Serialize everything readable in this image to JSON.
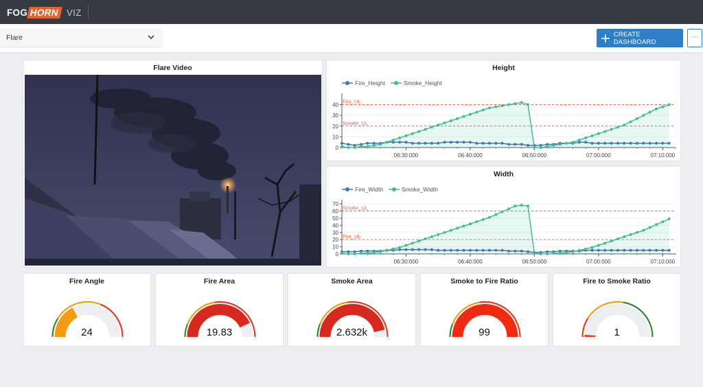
{
  "app": {
    "brand_fog": "FOG",
    "brand_horn": "HORN",
    "brand_viz": "VIZ"
  },
  "toolbar": {
    "dashboard_select": "Flare",
    "create_label": "CREATE DASHBOARD",
    "more_label": "···"
  },
  "video": {
    "title": "Flare Video"
  },
  "colors": {
    "fire": "#3d78b8",
    "smoke": "#3dbf8f",
    "limit": "#e8603c",
    "gauge_red": "#e53b1f",
    "gauge_orange": "#f39c12",
    "gauge_green": "#2e8b2e",
    "gauge_track": "#eceef1"
  },
  "chart_data": [
    {
      "type": "line",
      "title": "Height",
      "x_ticks": [
        "06:30:000",
        "06:40:000",
        "06:50:000",
        "07:00:000",
        "07:10:000"
      ],
      "x_range": [
        "06:20:00",
        "07:12:00"
      ],
      "ylim": [
        0,
        48
      ],
      "y_ticks": [
        0,
        10,
        20,
        30,
        40
      ],
      "limits": [
        {
          "label": "Fire_UL",
          "value": 40
        },
        {
          "label": "Smoke_UL",
          "value": 20
        }
      ],
      "series": [
        {
          "name": "Fire_Height",
          "x": [
            "06:20:00",
            "06:21:00",
            "06:22:00",
            "06:23:00",
            "06:24:00",
            "06:25:00",
            "06:26:00",
            "06:27:00",
            "06:28:00",
            "06:29:00",
            "06:30:00",
            "06:31:00",
            "06:32:00",
            "06:33:00",
            "06:34:00",
            "06:35:00",
            "06:36:00",
            "06:37:00",
            "06:38:00",
            "06:39:00",
            "06:40:00",
            "06:41:00",
            "06:42:00",
            "06:43:00",
            "06:44:00",
            "06:45:00",
            "06:46:00",
            "06:47:00",
            "06:48:00",
            "06:49:00",
            "06:50:00",
            "06:51:00",
            "06:52:00",
            "06:53:00",
            "06:54:00",
            "06:55:00",
            "06:56:00",
            "06:57:00",
            "06:58:00",
            "06:59:00",
            "07:00:00",
            "07:01:00",
            "07:02:00",
            "07:03:00",
            "07:04:00",
            "07:05:00",
            "07:06:00",
            "07:07:00",
            "07:08:00",
            "07:09:00",
            "07:10:00",
            "07:11:00"
          ],
          "values": [
            4,
            3,
            2,
            3,
            4,
            4,
            4,
            5,
            5,
            5,
            5,
            4,
            4,
            4,
            4,
            4,
            5,
            5,
            5,
            5,
            5,
            4,
            4,
            4,
            4,
            4,
            3,
            3,
            3,
            2,
            2,
            2,
            3,
            3,
            4,
            4,
            4,
            5,
            5,
            4,
            4,
            4,
            4,
            4,
            4,
            4,
            4,
            4,
            4,
            4,
            4,
            4
          ]
        },
        {
          "name": "Smoke_Height",
          "x": [
            "06:20:00",
            "06:21:00",
            "06:22:00",
            "06:23:00",
            "06:24:00",
            "06:25:00",
            "06:26:00",
            "06:27:00",
            "06:28:00",
            "06:29:00",
            "06:30:00",
            "06:31:00",
            "06:32:00",
            "06:33:00",
            "06:34:00",
            "06:35:00",
            "06:36:00",
            "06:37:00",
            "06:38:00",
            "06:39:00",
            "06:40:00",
            "06:41:00",
            "06:42:00",
            "06:43:00",
            "06:44:00",
            "06:45:00",
            "06:46:00",
            "06:47:00",
            "06:48:00",
            "06:49:00",
            "06:50:00",
            "06:51:00",
            "06:52:00",
            "06:53:00",
            "06:54:00",
            "06:55:00",
            "06:56:00",
            "06:57:00",
            "06:58:00",
            "06:59:00",
            "07:00:00",
            "07:01:00",
            "07:02:00",
            "07:03:00",
            "07:04:00",
            "07:05:00",
            "07:06:00",
            "07:07:00",
            "07:08:00",
            "07:09:00",
            "07:10:00",
            "07:11:00"
          ],
          "values": [
            1,
            0,
            0,
            1,
            1,
            2,
            3,
            5,
            7,
            9,
            11,
            13,
            15,
            17,
            19,
            21,
            23,
            25,
            27,
            29,
            31,
            33,
            35,
            37,
            38,
            39,
            40,
            41,
            42,
            40,
            0,
            0,
            1,
            2,
            3,
            4,
            5,
            7,
            9,
            11,
            13,
            15,
            17,
            19,
            21,
            24,
            27,
            30,
            33,
            36,
            38,
            40
          ]
        }
      ]
    },
    {
      "type": "line",
      "title": "Width",
      "x_ticks": [
        "06:30:000",
        "06:40:000",
        "06:50:000",
        "07:00:000",
        "07:10:000"
      ],
      "x_range": [
        "06:20:00",
        "07:12:00"
      ],
      "ylim": [
        0,
        72
      ],
      "y_ticks": [
        0,
        10,
        20,
        30,
        40,
        50,
        60,
        70
      ],
      "limits": [
        {
          "label": "Smoke_UL",
          "value": 60
        },
        {
          "label": "Fire_UL",
          "value": 20
        }
      ],
      "series": [
        {
          "name": "Fire_Width",
          "x": [
            "06:20:00",
            "06:21:00",
            "06:22:00",
            "06:23:00",
            "06:24:00",
            "06:25:00",
            "06:26:00",
            "06:27:00",
            "06:28:00",
            "06:29:00",
            "06:30:00",
            "06:31:00",
            "06:32:00",
            "06:33:00",
            "06:34:00",
            "06:35:00",
            "06:36:00",
            "06:37:00",
            "06:38:00",
            "06:39:00",
            "06:40:00",
            "06:41:00",
            "06:42:00",
            "06:43:00",
            "06:44:00",
            "06:45:00",
            "06:46:00",
            "06:47:00",
            "06:48:00",
            "06:49:00",
            "06:50:00",
            "06:51:00",
            "06:52:00",
            "06:53:00",
            "06:54:00",
            "06:55:00",
            "06:56:00",
            "06:57:00",
            "06:58:00",
            "06:59:00",
            "07:00:00",
            "07:01:00",
            "07:02:00",
            "07:03:00",
            "07:04:00",
            "07:05:00",
            "07:06:00",
            "07:07:00",
            "07:08:00",
            "07:09:00",
            "07:10:00",
            "07:11:00"
          ],
          "values": [
            3,
            3,
            3,
            4,
            4,
            4,
            4,
            5,
            5,
            6,
            6,
            6,
            6,
            6,
            6,
            5,
            5,
            5,
            5,
            5,
            5,
            5,
            5,
            5,
            5,
            5,
            4,
            4,
            4,
            3,
            2,
            2,
            3,
            3,
            4,
            4,
            4,
            4,
            5,
            5,
            5,
            5,
            5,
            5,
            5,
            5,
            5,
            5,
            5,
            5,
            5,
            5
          ]
        },
        {
          "name": "Smoke_Width",
          "x": [
            "06:20:00",
            "06:21:00",
            "06:22:00",
            "06:23:00",
            "06:24:00",
            "06:25:00",
            "06:26:00",
            "06:27:00",
            "06:28:00",
            "06:29:00",
            "06:30:00",
            "06:31:00",
            "06:32:00",
            "06:33:00",
            "06:34:00",
            "06:35:00",
            "06:36:00",
            "06:37:00",
            "06:38:00",
            "06:39:00",
            "06:40:00",
            "06:41:00",
            "06:42:00",
            "06:43:00",
            "06:44:00",
            "06:45:00",
            "06:46:00",
            "06:47:00",
            "06:48:00",
            "06:49:00",
            "06:50:00",
            "06:51:00",
            "06:52:00",
            "06:53:00",
            "06:54:00",
            "06:55:00",
            "06:56:00",
            "06:57:00",
            "06:58:00",
            "06:59:00",
            "07:00:00",
            "07:01:00",
            "07:02:00",
            "07:03:00",
            "07:04:00",
            "07:05:00",
            "07:06:00",
            "07:07:00",
            "07:08:00",
            "07:09:00",
            "07:10:00",
            "07:11:00"
          ],
          "values": [
            1,
            0,
            0,
            1,
            1,
            2,
            3,
            5,
            7,
            9,
            12,
            15,
            18,
            21,
            24,
            27,
            30,
            33,
            36,
            39,
            42,
            45,
            48,
            51,
            55,
            59,
            63,
            67,
            68,
            67,
            1,
            0,
            0,
            1,
            1,
            2,
            3,
            5,
            7,
            9,
            12,
            15,
            18,
            21,
            24,
            27,
            30,
            33,
            37,
            41,
            45,
            49
          ]
        }
      ]
    }
  ],
  "gauges": [
    {
      "title": "Fire Angle",
      "display": "24",
      "fill": 0.35,
      "fill_color": "#f39c12",
      "track": "#eceef1",
      "rim": [
        {
          "from": 0,
          "to": 0.18,
          "color": "#2e8b2e"
        },
        {
          "from": 0.18,
          "to": 0.62,
          "color": "#f39c12"
        },
        {
          "from": 0.62,
          "to": 1,
          "color": "#e53b1f"
        }
      ]
    },
    {
      "title": "Fire Area",
      "display": "19.83",
      "fill": 0.86,
      "fill_color": "#d6281e",
      "track": "#eceef1",
      "rim": [
        {
          "from": 0,
          "to": 0.12,
          "color": "#2e8b2e"
        },
        {
          "from": 0.12,
          "to": 0.45,
          "color": "#f39c12"
        },
        {
          "from": 0.45,
          "to": 1,
          "color": "#e53b1f"
        }
      ]
    },
    {
      "title": "Smoke Area",
      "display": "2.632k",
      "fill": 0.93,
      "fill_color": "#d6281e",
      "track": "#eceef1",
      "rim": [
        {
          "from": 0,
          "to": 0.12,
          "color": "#2e8b2e"
        },
        {
          "from": 0.12,
          "to": 0.45,
          "color": "#f39c12"
        },
        {
          "from": 0.45,
          "to": 1,
          "color": "#e53b1f"
        }
      ]
    },
    {
      "title": "Smoke to Fire Ratio",
      "display": "99",
      "fill": 1.0,
      "fill_color": "#f12a14",
      "track": "#eceef1",
      "rim": [
        {
          "from": 0,
          "to": 0.12,
          "color": "#2e8b2e"
        },
        {
          "from": 0.12,
          "to": 0.45,
          "color": "#f39c12"
        },
        {
          "from": 0.45,
          "to": 1,
          "color": "#e53b1f"
        }
      ]
    },
    {
      "title": "Fire to Smoke Ratio",
      "display": "1",
      "fill": 0.02,
      "fill_color": "#e53b1f",
      "track": "#eceef1",
      "rim": [
        {
          "from": 0,
          "to": 0.18,
          "color": "#e53b1f"
        },
        {
          "from": 0.18,
          "to": 0.55,
          "color": "#f39c12"
        },
        {
          "from": 0.55,
          "to": 1,
          "color": "#2e8b2e"
        }
      ]
    }
  ]
}
